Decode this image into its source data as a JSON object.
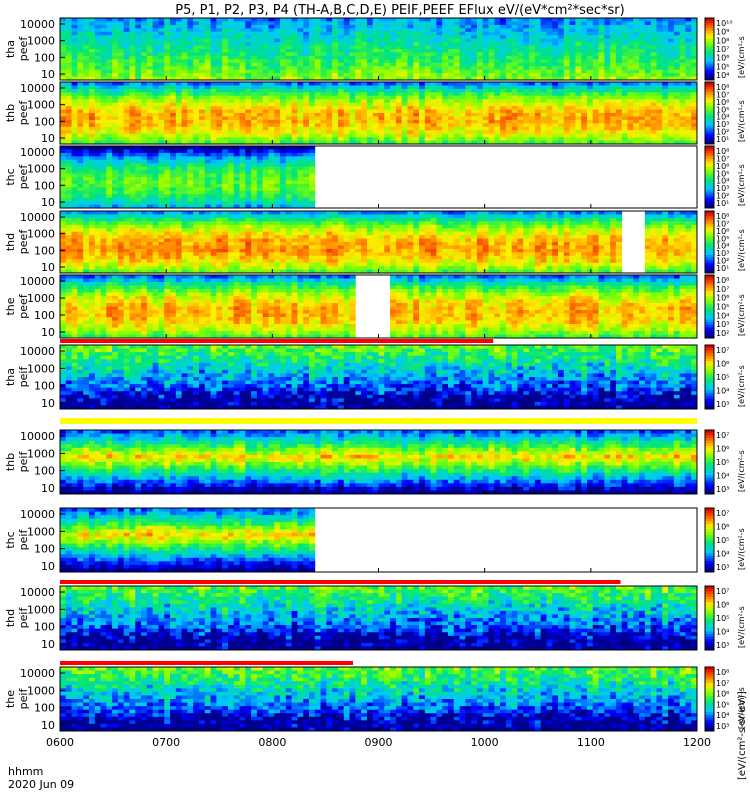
{
  "title": "P5, P1, P2, P3, P4 (TH-A,B,C,D,E) PEIF,PEEF EFlux eV/(eV*cm²*sec*sr)",
  "x_label_line1": "hhmm",
  "x_label_line2": "2020 Jun 09",
  "colorbar_label_short": "[eV/(cm²-s",
  "colorbar_label_long": "[eV/(cm²-s-sr-eV)]",
  "chart_data": [
    {
      "type": "heatmap",
      "title": "",
      "xlabel": "hhmm",
      "ylabel": "tha peef",
      "panels": [
        {
          "id": "tha-peef",
          "label1": "tha",
          "label2": "peef",
          "species": "electron",
          "base": 0.32,
          "seed": 11,
          "coverage": [
            [
              0,
              1
            ]
          ],
          "gaps": [],
          "cbar_ticks": [
            "10¹⁰",
            "10⁹",
            "10⁸",
            "10⁷",
            "10⁶",
            "10⁵",
            "10⁴"
          ],
          "status": "none"
        },
        {
          "id": "thb-peef",
          "label1": "thb",
          "label2": "peef",
          "species": "electron",
          "base": 0.78,
          "seed": 23,
          "coverage": [
            [
              0,
              1
            ]
          ],
          "gaps": [],
          "cbar_ticks": [
            "10⁸",
            "10⁷",
            "10⁶",
            "10⁵",
            "10⁴",
            "10³",
            "10²",
            "10¹"
          ],
          "status": "none"
        },
        {
          "id": "thc-peef",
          "label1": "thc",
          "label2": "peef",
          "species": "electron",
          "base": 0.55,
          "seed": 37,
          "coverage": [
            [
              0,
              0.4
            ]
          ],
          "gaps": [],
          "cbar_ticks": [
            "10⁸",
            "10⁷",
            "10⁶",
            "10⁵",
            "10⁴",
            "10³",
            "10²",
            "10¹"
          ],
          "status": "none"
        },
        {
          "id": "thd-peef",
          "label1": "thd",
          "label2": "peef",
          "species": "electron",
          "base": 0.8,
          "seed": 41,
          "coverage": [
            [
              0,
              1
            ]
          ],
          "gaps": [
            [
              0.88,
              0.91
            ]
          ],
          "cbar_ticks": [
            "10⁸",
            "10⁷",
            "10⁶",
            "10⁵",
            "10⁴",
            "10³",
            "10²",
            "10¹"
          ],
          "status": "none"
        },
        {
          "id": "the-peef",
          "label1": "the",
          "label2": "peef",
          "species": "electron",
          "base": 0.78,
          "seed": 53,
          "coverage": [
            [
              0,
              1
            ]
          ],
          "gaps": [
            [
              0.46,
              0.51
            ]
          ],
          "cbar_ticks": [
            "10⁸",
            "10⁷",
            "10⁶",
            "10⁵",
            "10⁴",
            "10³",
            "10²"
          ],
          "status": "none"
        },
        {
          "id": "tha-peif",
          "label1": "tha",
          "label2": "peif",
          "species": "ion",
          "base": 0.38,
          "seed": 61,
          "coverage": [
            [
              0,
              1
            ]
          ],
          "gaps": [],
          "cbar_ticks": [
            "10⁷",
            "10⁶",
            "10⁵",
            "10⁴",
            "10³"
          ],
          "status": "red",
          "red_until": 0.68
        },
        {
          "id": "thb-peif",
          "label1": "thb",
          "label2": "peif",
          "species": "ion",
          "base": 0.48,
          "seed": 71,
          "coverage": [
            [
              0,
              1
            ]
          ],
          "gaps": [],
          "cbar_ticks": [
            "10⁷",
            "10⁶",
            "10⁵",
            "10⁴",
            "10³"
          ],
          "status": "yellow"
        },
        {
          "id": "thc-peif",
          "label1": "thc",
          "label2": "peif",
          "species": "ion",
          "base": 0.55,
          "seed": 83,
          "coverage": [
            [
              0,
              0.4
            ]
          ],
          "gaps": [],
          "cbar_ticks": [
            "10⁷",
            "10⁶",
            "10⁵",
            "10⁴",
            "10³"
          ],
          "status": "none"
        },
        {
          "id": "thd-peif",
          "label1": "thd",
          "label2": "peif",
          "species": "ion",
          "base": 0.36,
          "seed": 97,
          "coverage": [
            [
              0,
              1
            ]
          ],
          "gaps": [],
          "cbar_ticks": [
            "10⁷",
            "10⁶",
            "10⁵",
            "10⁴",
            "10³"
          ],
          "status": "red",
          "red_until": 0.88
        },
        {
          "id": "the-peif",
          "label1": "the",
          "label2": "peif",
          "species": "ion",
          "base": 0.36,
          "seed": 101,
          "coverage": [
            [
              0,
              1
            ]
          ],
          "gaps": [],
          "cbar_ticks": [
            "10⁸",
            "10⁷",
            "10⁶",
            "10⁵",
            "10⁴",
            "10³"
          ],
          "status": "red",
          "red_until": 0.46
        }
      ],
      "y_ticks": [
        "10000",
        "1000",
        "100",
        "10"
      ],
      "x_ticks": [
        "0600",
        "0700",
        "0800",
        "0900",
        "1000",
        "1100",
        "1200"
      ],
      "xlim": [
        "0600",
        "1200"
      ],
      "y_scale": "log",
      "ylim": [
        10,
        20000
      ],
      "grid": false,
      "colormap": "rainbow",
      "legend": "none"
    }
  ]
}
